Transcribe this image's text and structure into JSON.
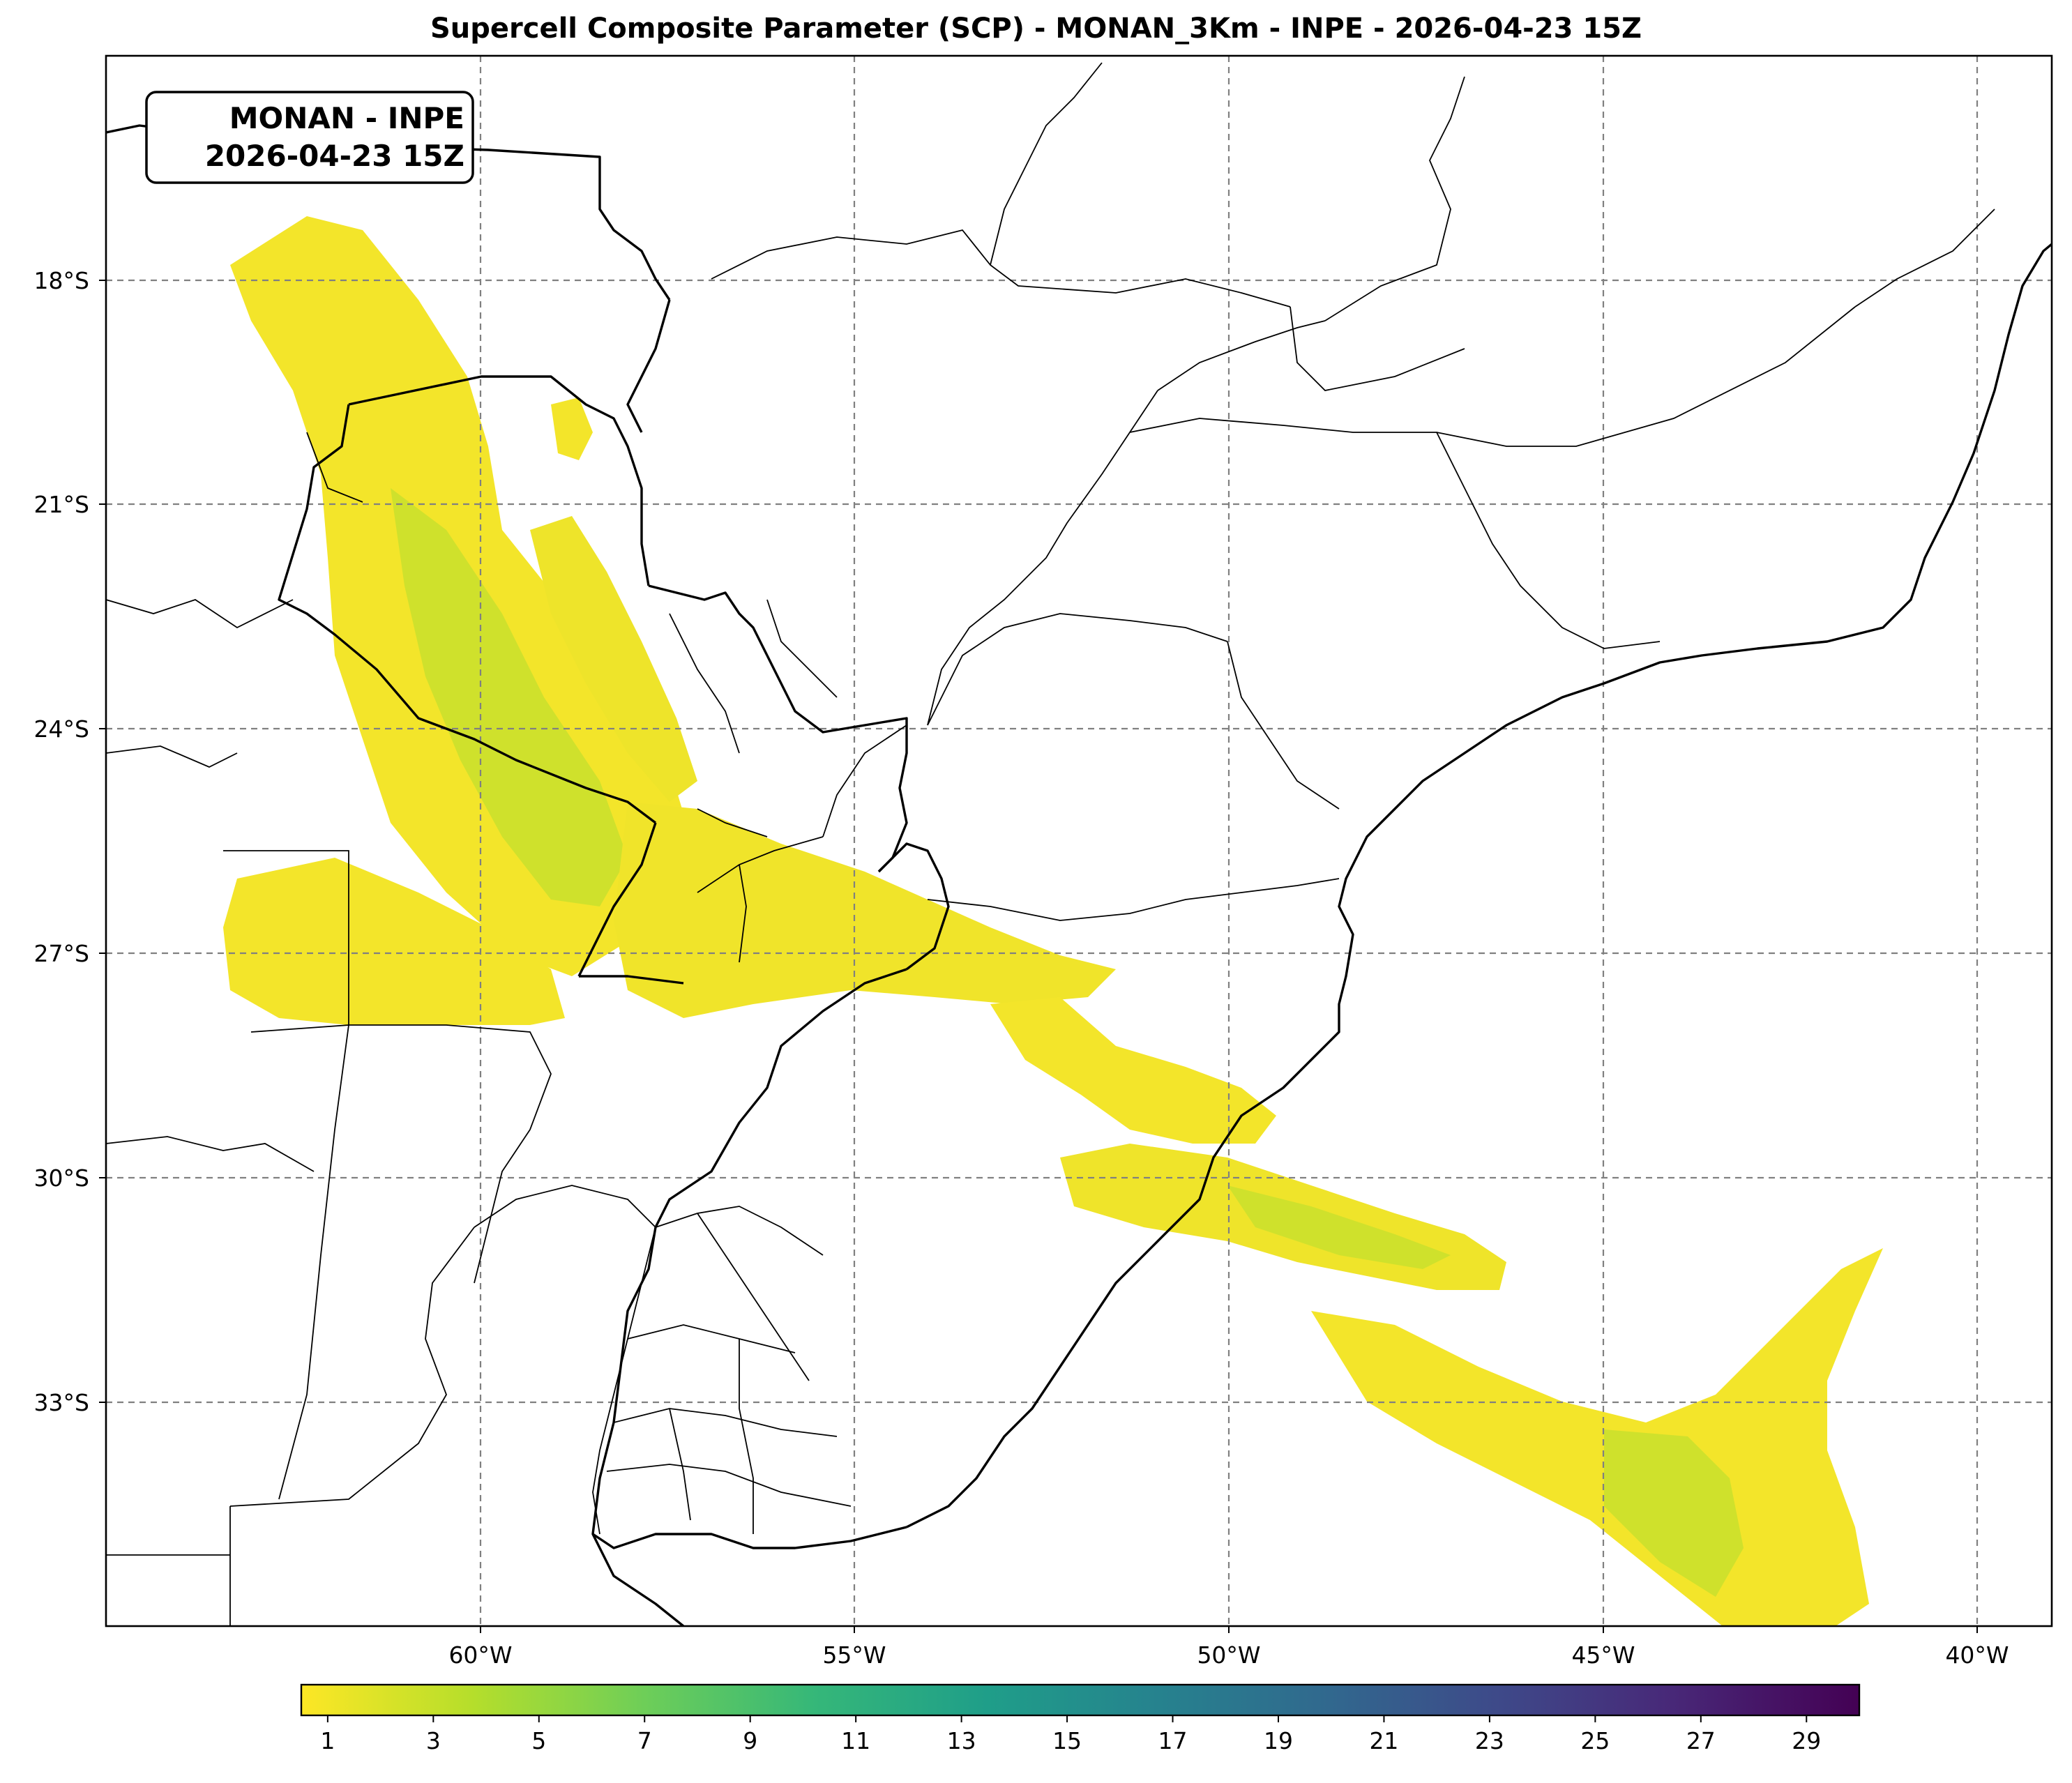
{
  "title": "Supercell Composite Parameter (SCP) - MONAN_3Km - INPE - 2026-04-23 15Z",
  "badge": {
    "line1": "MONAN - INPE",
    "line2": "2026-04-23 15Z"
  },
  "map": {
    "lon_range": [
      -65,
      -39
    ],
    "lat_range": [
      -37,
      -16
    ],
    "gridlines": "dashed",
    "lon_ticks": [
      {
        "value": -60,
        "label": "60°W"
      },
      {
        "value": -55,
        "label": "55°W"
      },
      {
        "value": -50,
        "label": "50°W"
      },
      {
        "value": -45,
        "label": "45°W"
      },
      {
        "value": -40,
        "label": "40°W"
      }
    ],
    "lat_ticks": [
      {
        "value": -18,
        "label": "18°S"
      },
      {
        "value": -21,
        "label": "21°S"
      },
      {
        "value": -24,
        "label": "24°S"
      },
      {
        "value": -27,
        "label": "27°S"
      },
      {
        "value": -30,
        "label": "30°S"
      },
      {
        "value": -33,
        "label": "33°S"
      }
    ]
  },
  "colorbar": {
    "colormap": "viridis (reversed)",
    "min": 0.5,
    "max": 30,
    "ticks": [
      "1",
      "3",
      "5",
      "7",
      "9",
      "11",
      "13",
      "15",
      "17",
      "19",
      "21",
      "23",
      "25",
      "27",
      "29"
    ],
    "stops": [
      "#fde725",
      "#b5de2b",
      "#6ece58",
      "#35b779",
      "#1f9e89",
      "#26828e",
      "#31688e",
      "#3e4989",
      "#482878",
      "#440154"
    ]
  },
  "scp_regions": [
    {
      "name": "paraguay-chaco-band",
      "level": 2.2
    },
    {
      "name": "argentina-northeast-patch",
      "level": 1.4
    },
    {
      "name": "misiones-parana-band",
      "level": 2.0
    },
    {
      "name": "rio-grande-do-sul-band",
      "level": 1.8
    },
    {
      "name": "south-atlantic-band",
      "level": 2.4
    },
    {
      "name": "mato-grosso-north-patch",
      "level": 1.5
    }
  ]
}
